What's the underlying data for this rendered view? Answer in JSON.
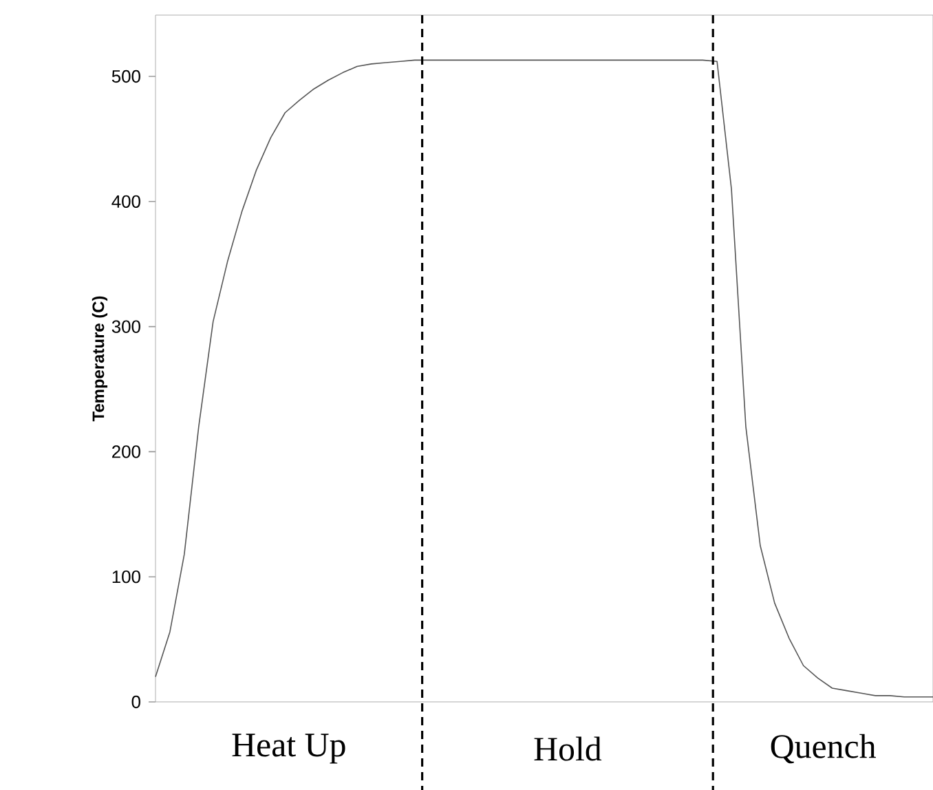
{
  "chart_data": {
    "type": "line",
    "ylabel": "Temperature (C)",
    "categories": [
      null,
      null,
      null,
      null,
      null,
      null,
      null,
      null,
      null,
      null,
      null,
      null,
      null,
      null,
      null,
      null,
      null,
      null,
      null,
      null,
      null,
      null,
      null,
      null,
      null,
      null,
      null,
      null,
      null,
      null,
      null,
      null,
      null,
      null,
      null,
      null,
      null,
      null,
      null,
      null,
      null,
      null,
      null,
      null,
      null,
      null,
      null,
      null,
      null,
      null,
      null,
      null,
      null,
      null,
      null
    ],
    "series": [
      {
        "color": "#555555",
        "values": [
          20,
          56,
          118,
          220,
          304,
          352,
          392,
          425,
          451,
          471,
          481,
          490,
          497,
          503,
          508,
          510,
          511,
          512,
          513,
          513,
          513,
          513,
          513,
          513,
          513,
          513,
          513,
          513,
          513,
          513,
          513,
          513,
          513,
          513,
          513,
          513,
          513,
          513,
          513,
          512,
          410,
          220,
          125,
          79,
          51,
          29,
          19,
          11,
          9,
          7,
          5,
          5,
          4,
          4,
          4
        ]
      }
    ],
    "ylim": [
      0,
      549
    ],
    "yticks": [
      0,
      100,
      200,
      300,
      400,
      500
    ],
    "tick_labels": "y",
    "annotations": [
      "Heat Up",
      "Hold",
      "Quench"
    ],
    "grid": false,
    "marker": "none",
    "line_style": "solid"
  }
}
